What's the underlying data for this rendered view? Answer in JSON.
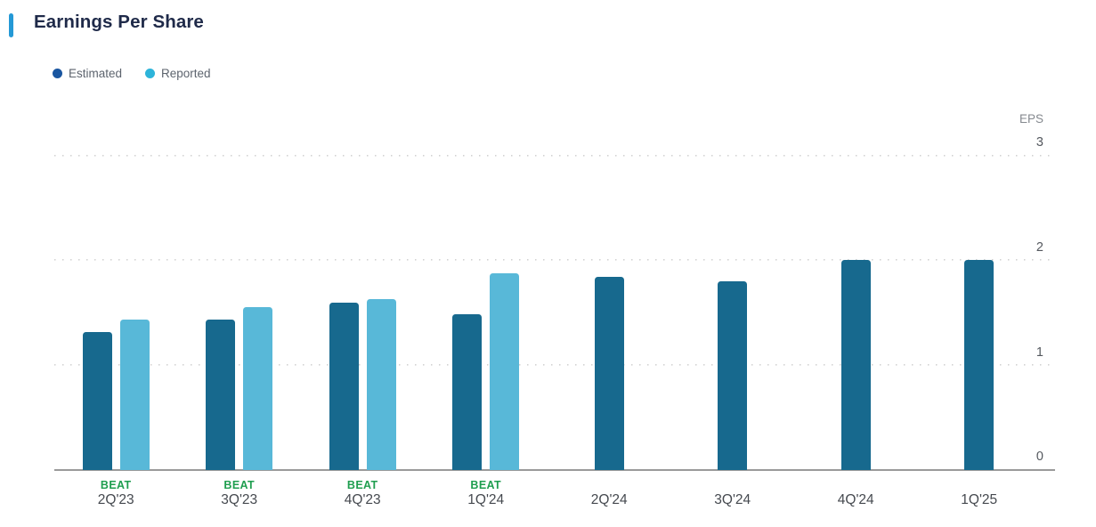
{
  "page": {
    "title": "Earnings Per Share"
  },
  "legend": {
    "items": [
      {
        "label": "Estimated",
        "color": "#1a56a0"
      },
      {
        "label": "Reported",
        "color": "#2db4da"
      }
    ]
  },
  "axis": {
    "unit_label": "EPS",
    "ticks": [
      "3",
      "2",
      "1",
      "0"
    ]
  },
  "colors": {
    "accent": "#2499d6",
    "title_text": "#1f2a49",
    "estimated_bar": "#17698e",
    "reported_bar": "#58b8d8",
    "beat_green": "#1f9e4f",
    "gridline": "#d2d2d2",
    "axis_line": "#9a9a9a"
  },
  "chart_data": {
    "type": "bar",
    "title": "Earnings Per Share",
    "categories": [
      "2Q'23",
      "3Q'23",
      "4Q'23",
      "1Q'24",
      "2Q'24",
      "3Q'24",
      "4Q'24",
      "1Q'25"
    ],
    "series": [
      {
        "name": "Estimated",
        "color": "#17698e",
        "values": [
          1.31,
          1.43,
          1.59,
          1.48,
          1.84,
          1.8,
          2.0,
          2.0
        ]
      },
      {
        "name": "Reported",
        "color": "#58b8d8",
        "values": [
          1.43,
          1.55,
          1.63,
          1.87,
          null,
          null,
          null,
          null
        ]
      }
    ],
    "annotations": {
      "beat_label": "BEAT",
      "beat": [
        true,
        true,
        true,
        true,
        false,
        false,
        false,
        false
      ]
    },
    "xlabel": "",
    "ylabel": "EPS",
    "ylim": [
      0,
      3
    ],
    "yticks": [
      0,
      1,
      2,
      3
    ],
    "grid": "horizontal-dotted",
    "legend_position": "top-left",
    "y_axis_side": "right"
  }
}
